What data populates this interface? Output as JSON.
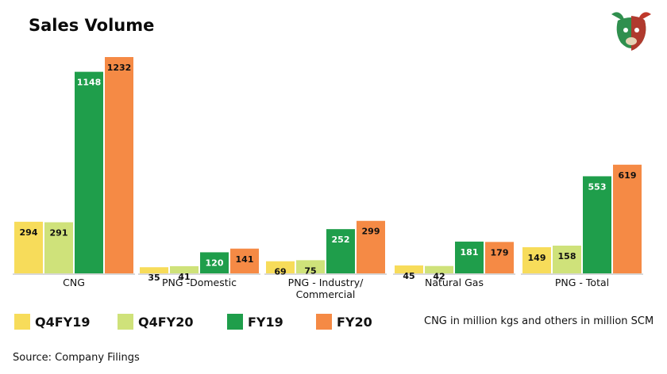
{
  "title": "Sales Volume",
  "legend": {
    "q4fy19": "Q4FY19",
    "q4fy20": "Q4FY20",
    "fy19": "FY19",
    "fy20": "FY20"
  },
  "note": "CNG in million kgs and others in million SCM",
  "source": "Source: Company Filings",
  "logo_icon": "bull-bear-head-icon",
  "colors": {
    "q4fy19": "#f7dc5a",
    "q4fy20": "#cfe27a",
    "fy19": "#1f9e4b",
    "fy20": "#f58a45",
    "baseline": "#d8d8d8"
  },
  "chart_data": {
    "type": "bar",
    "categories": [
      [
        "CNG"
      ],
      [
        "PNG -Domestic"
      ],
      [
        "PNG - Industry/",
        "Commercial"
      ],
      [
        "Natural Gas"
      ],
      [
        "PNG - Total"
      ]
    ],
    "series": [
      {
        "name": "Q4FY19",
        "values": [
          294,
          35,
          69,
          45,
          149
        ]
      },
      {
        "name": "Q4FY20",
        "values": [
          291,
          41,
          75,
          42,
          158
        ]
      },
      {
        "name": "FY19",
        "values": [
          1148,
          120,
          252,
          181,
          553
        ]
      },
      {
        "name": "FY20",
        "values": [
          1232,
          141,
          299,
          179,
          619
        ]
      }
    ]
  }
}
